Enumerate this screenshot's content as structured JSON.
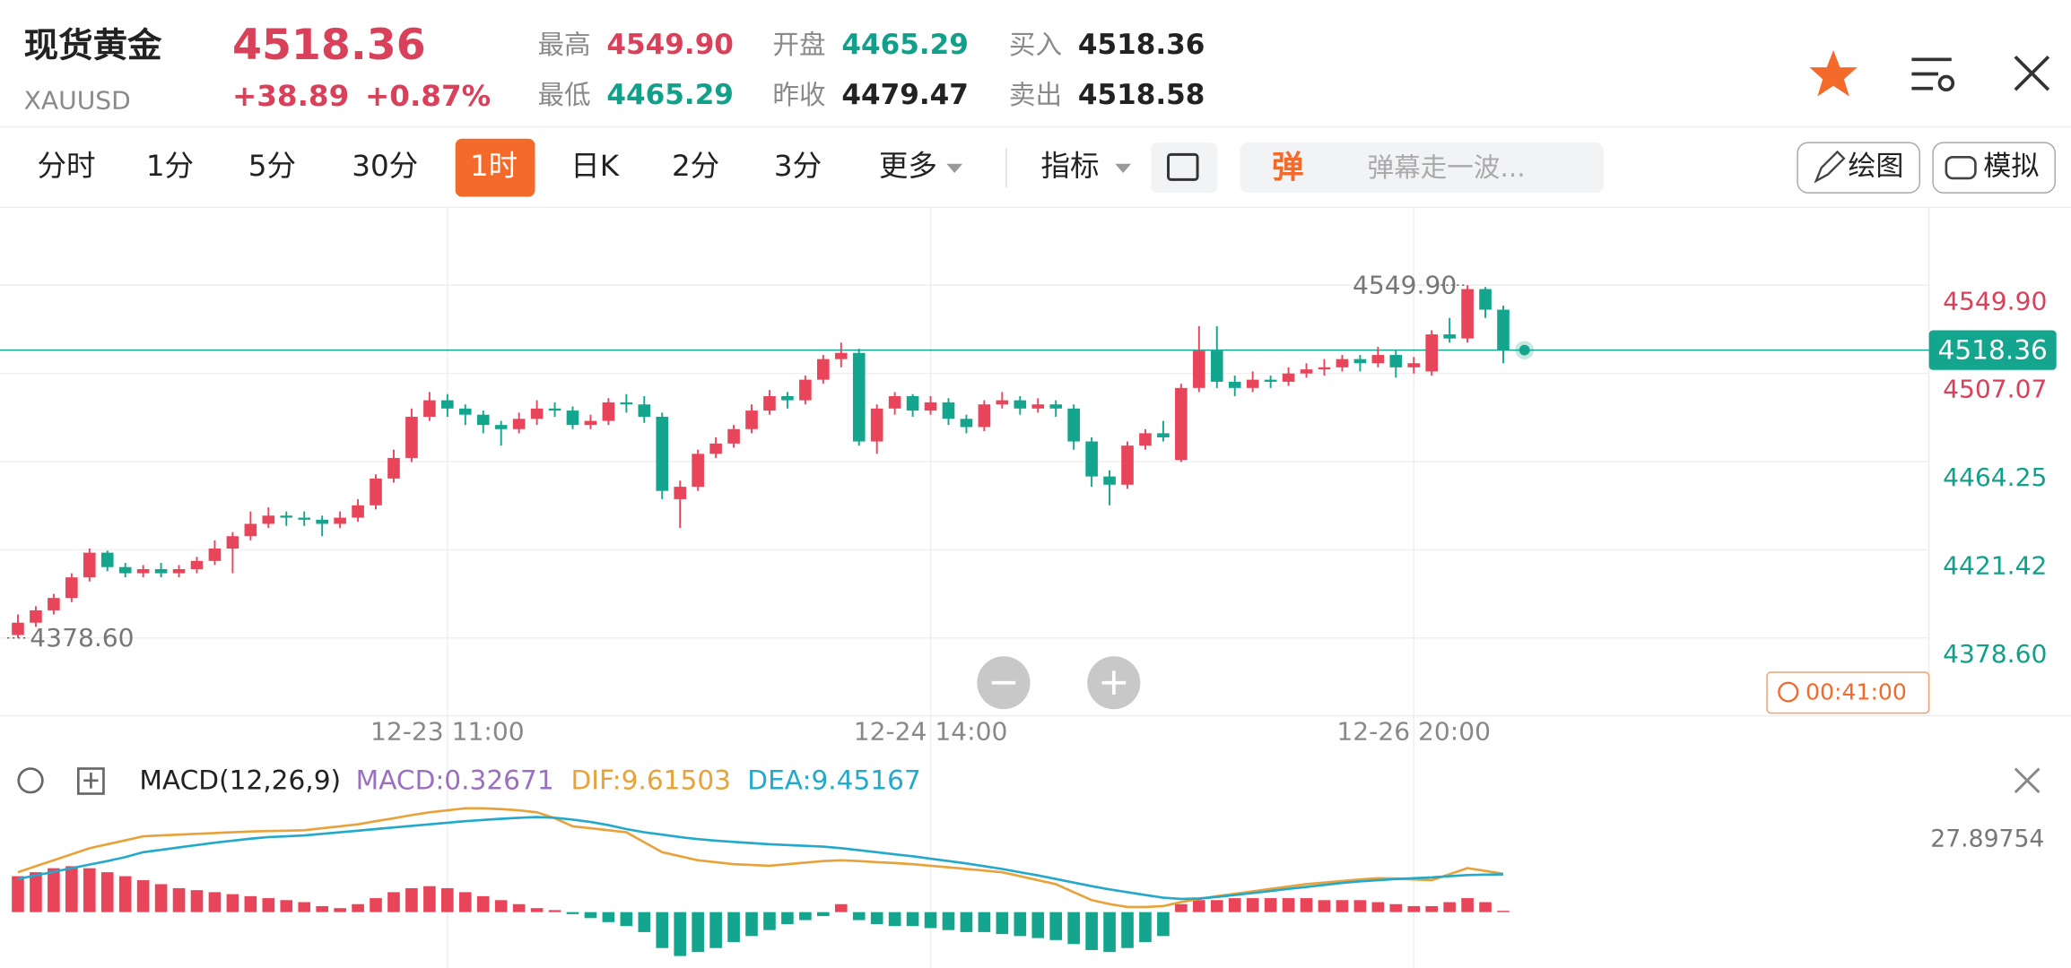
{
  "header": {
    "name": "现货黄金",
    "symbol": "XAUUSD",
    "price": "4518.36",
    "change": "+38.89",
    "change_pct": "+0.87%",
    "stats": [
      {
        "label": "最高",
        "value": "4549.90",
        "color": "#d9415a"
      },
      {
        "label": "最低",
        "value": "4465.29",
        "color": "#12a08a"
      },
      {
        "label": "开盘",
        "value": "4465.29",
        "color": "#12a08a"
      },
      {
        "label": "昨收",
        "value": "4479.47",
        "color": "#222222"
      },
      {
        "label": "买入",
        "value": "4518.36",
        "color": "#222222"
      },
      {
        "label": "卖出",
        "value": "4518.58",
        "color": "#222222"
      }
    ]
  },
  "toolbar": {
    "tabs": [
      "分时",
      "1分",
      "5分",
      "30分",
      "1时",
      "日K",
      "2分",
      "3分",
      "更多"
    ],
    "active": 4,
    "indicator": "指标",
    "danmu_icon": "弹",
    "danmu_placeholder": "弹幕走一波...",
    "draw": "绘图",
    "simulate": "模拟"
  },
  "kline": {
    "ylim": [
      4340.8,
      4587.7
    ],
    "yticks": [
      {
        "value": 4549.9,
        "label": "4549.90",
        "color": "#d9415a"
      },
      {
        "value": 4507.07,
        "label": "4507.07",
        "color": "#d9415a"
      },
      {
        "value": 4464.25,
        "label": "4464.25",
        "color": "#12a08a"
      },
      {
        "value": 4421.42,
        "label": "4421.42",
        "color": "#12a08a"
      },
      {
        "value": 4378.6,
        "label": "4378.60",
        "color": "#12a08a"
      }
    ],
    "xticks": [
      {
        "value": 24,
        "label": "12-23 11:00"
      },
      {
        "value": 51,
        "label": "12-24 14:00"
      },
      {
        "value": 78,
        "label": "12-26 20:00"
      }
    ],
    "up_color": "#e8455a",
    "down_color": "#13a58d",
    "current_price": 4518.36,
    "high_mark": {
      "value": 4549.9,
      "label": "4549.90",
      "candle": 81
    },
    "low_mark": {
      "value": 4378.6,
      "label": "4378.60",
      "candle": 0
    },
    "timer": "00:41:00",
    "candles": [
      [
        4380,
        4390,
        4378.6,
        4386
      ],
      [
        4386,
        4394,
        4384,
        4392
      ],
      [
        4392,
        4400,
        4390,
        4398
      ],
      [
        4398,
        4410,
        4396,
        4408
      ],
      [
        4408,
        4422,
        4406,
        4420
      ],
      [
        4420,
        4421,
        4411,
        4413
      ],
      [
        4413,
        4415,
        4408,
        4410
      ],
      [
        4410,
        4414,
        4408,
        4412
      ],
      [
        4412,
        4415,
        4408,
        4410
      ],
      [
        4410,
        4414,
        4408,
        4412
      ],
      [
        4412,
        4418,
        4410,
        4416
      ],
      [
        4416,
        4426,
        4414,
        4422
      ],
      [
        4422,
        4430,
        4410,
        4428
      ],
      [
        4428,
        4440,
        4426,
        4434
      ],
      [
        4434,
        4442,
        4432,
        4438
      ],
      [
        4438,
        4440,
        4433,
        4437
      ],
      [
        4437,
        4440,
        4433,
        4436
      ],
      [
        4436,
        4438,
        4428,
        4434
      ],
      [
        4434,
        4440,
        4432,
        4437
      ],
      [
        4437,
        4446,
        4435,
        4443
      ],
      [
        4443,
        4458,
        4441,
        4456
      ],
      [
        4456,
        4470,
        4454,
        4466
      ],
      [
        4466,
        4490,
        4464,
        4486
      ],
      [
        4486,
        4498,
        4484,
        4494
      ],
      [
        4494,
        4497,
        4486,
        4490
      ],
      [
        4490,
        4492,
        4482,
        4487
      ],
      [
        4487,
        4489,
        4478,
        4482
      ],
      [
        4482,
        4484,
        4472,
        4480
      ],
      [
        4480,
        4488,
        4478,
        4485
      ],
      [
        4485,
        4494,
        4482,
        4490
      ],
      [
        4490,
        4493,
        4486,
        4489
      ],
      [
        4489,
        4491,
        4480,
        4482
      ],
      [
        4482,
        4487,
        4480,
        4484
      ],
      [
        4484,
        4495,
        4482,
        4493
      ],
      [
        4493,
        4497,
        4488,
        4492
      ],
      [
        4492,
        4496,
        4483,
        4486
      ],
      [
        4486,
        4488,
        4446,
        4450
      ],
      [
        4446,
        4455,
        4432,
        4452
      ],
      [
        4452,
        4470,
        4450,
        4468
      ],
      [
        4468,
        4476,
        4466,
        4473
      ],
      [
        4473,
        4482,
        4471,
        4480
      ],
      [
        4480,
        4492,
        4478,
        4489
      ],
      [
        4489,
        4499,
        4487,
        4496
      ],
      [
        4496,
        4498,
        4490,
        4494
      ],
      [
        4494,
        4506,
        4492,
        4504
      ],
      [
        4504,
        4516,
        4502,
        4514
      ],
      [
        4514,
        4522,
        4510,
        4517
      ],
      [
        4517,
        4519,
        4472,
        4474
      ],
      [
        4474,
        4492,
        4468,
        4490
      ],
      [
        4490,
        4498,
        4487,
        4496
      ],
      [
        4496,
        4497,
        4486,
        4489
      ],
      [
        4489,
        4496,
        4487,
        4493
      ],
      [
        4493,
        4495,
        4482,
        4485
      ],
      [
        4485,
        4487,
        4478,
        4481
      ],
      [
        4481,
        4494,
        4479,
        4492
      ],
      [
        4492,
        4498,
        4490,
        4494
      ],
      [
        4494,
        4496,
        4487,
        4490
      ],
      [
        4490,
        4495,
        4488,
        4492
      ],
      [
        4492,
        4494,
        4486,
        4490
      ],
      [
        4490,
        4492,
        4470,
        4474
      ],
      [
        4474,
        4476,
        4452,
        4457
      ],
      [
        4457,
        4460,
        4443,
        4453
      ],
      [
        4453,
        4474,
        4451,
        4472
      ],
      [
        4472,
        4480,
        4470,
        4478
      ],
      [
        4478,
        4484,
        4474,
        4476
      ],
      [
        4465,
        4502,
        4464,
        4500
      ],
      [
        4500,
        4530,
        4498,
        4518
      ],
      [
        4518,
        4530,
        4500,
        4503
      ],
      [
        4503,
        4506,
        4496,
        4500
      ],
      [
        4500,
        4508,
        4498,
        4504
      ],
      [
        4504,
        4506,
        4500,
        4503
      ],
      [
        4503,
        4510,
        4501,
        4507
      ],
      [
        4507,
        4512,
        4505,
        4509
      ],
      [
        4509,
        4514,
        4506,
        4510
      ],
      [
        4510,
        4516,
        4508,
        4514
      ],
      [
        4514,
        4516,
        4508,
        4512
      ],
      [
        4512,
        4520,
        4510,
        4516
      ],
      [
        4516,
        4518,
        4505,
        4510
      ],
      [
        4510,
        4515,
        4507,
        4512
      ],
      [
        4508,
        4528,
        4506,
        4526
      ],
      [
        4526,
        4534,
        4522,
        4524
      ],
      [
        4524,
        4549.9,
        4522,
        4548
      ],
      [
        4548,
        4549,
        4534,
        4538
      ],
      [
        4538,
        4540,
        4512,
        4518.36
      ]
    ]
  },
  "macd": {
    "title": "MACD(12,26,9)",
    "macd_label": "MACD:0.32671",
    "dif_label": "DIF:9.61503",
    "dea_label": "DEA:9.45167",
    "axis_label": "27.89754",
    "ylim": [
      -14,
      30
    ],
    "dif_color": "#e8a23a",
    "dea_color": "#23a9c9",
    "macd_color": "#9b6fc0",
    "dif": [
      10,
      11.5,
      13,
      14.5,
      16,
      17,
      18,
      19,
      19.2,
      19.4,
      19.6,
      19.8,
      20,
      20.2,
      20.3,
      20.4,
      20.5,
      21,
      21.5,
      22,
      22.8,
      23.5,
      24.3,
      25,
      25.5,
      26,
      26,
      25.8,
      25.5,
      25,
      23.5,
      21.5,
      21,
      20.5,
      20,
      17.5,
      15,
      14,
      13,
      12.5,
      12,
      11.8,
      11.6,
      12,
      12.4,
      12.8,
      13,
      12.8,
      12.5,
      12.3,
      12,
      11.6,
      11.2,
      10.8,
      10.4,
      10,
      9,
      8,
      7,
      5,
      3,
      2,
      1.3,
      1.3,
      1.5,
      2.5,
      3.3,
      4,
      4.6,
      5.2,
      5.8,
      6.4,
      7,
      7.4,
      7.8,
      8.2,
      8.5,
      8.4,
      8.2,
      8,
      9.5,
      11,
      10.3,
      9.61503
    ],
    "dea": [
      8.3,
      9.2,
      10.1,
      11,
      11.9,
      12.8,
      13.8,
      15,
      15.6,
      16.2,
      16.8,
      17.4,
      17.9,
      18.4,
      18.8,
      19,
      19.2,
      19.6,
      20,
      20.4,
      20.8,
      21.2,
      21.6,
      22,
      22.4,
      22.8,
      23.1,
      23.4,
      23.6,
      23.8,
      23.6,
      23.2,
      22.6,
      21.8,
      20.8,
      20,
      19.4,
      18.8,
      18.3,
      17.9,
      17.6,
      17.3,
      17,
      16.8,
      16.6,
      16.4,
      16,
      15.5,
      15,
      14.5,
      14,
      13.4,
      12.8,
      12.2,
      11.5,
      10.8,
      10,
      9.2,
      8.3,
      7.4,
      6.5,
      5.7,
      5,
      4.3,
      3.6,
      3.3,
      3.4,
      3.8,
      4.3,
      4.8,
      5.3,
      5.8,
      6.3,
      6.8,
      7.3,
      7.7,
      8,
      8.3,
      8.5,
      8.7,
      9,
      9.3,
      9.4,
      9.45167
    ],
    "hist": [
      9,
      10,
      11,
      11.5,
      11,
      10,
      9,
      8,
      7,
      6,
      5.5,
      5,
      4.5,
      4,
      3.5,
      3,
      2.5,
      1.5,
      1,
      2,
      3.5,
      5,
      6,
      6.5,
      6,
      5,
      4,
      3,
      2,
      1,
      0.5,
      -0.5,
      -1.5,
      -2.5,
      -3.5,
      -5,
      -9,
      -11,
      -10,
      -9,
      -7.5,
      -6,
      -4.5,
      -3,
      -2,
      -1,
      2,
      -2,
      -3,
      -3.5,
      -3.5,
      -4,
      -4.5,
      -5,
      -5,
      -5.5,
      -6,
      -6.5,
      -7,
      -8,
      -9.5,
      -10,
      -9,
      -7.5,
      -6,
      2,
      3,
      3,
      3.5,
      3.5,
      3.5,
      3.5,
      3.5,
      3,
      3,
      3,
      2.5,
      2,
      1.5,
      1.5,
      2.5,
      3.5,
      2.5,
      0.32671
    ]
  }
}
